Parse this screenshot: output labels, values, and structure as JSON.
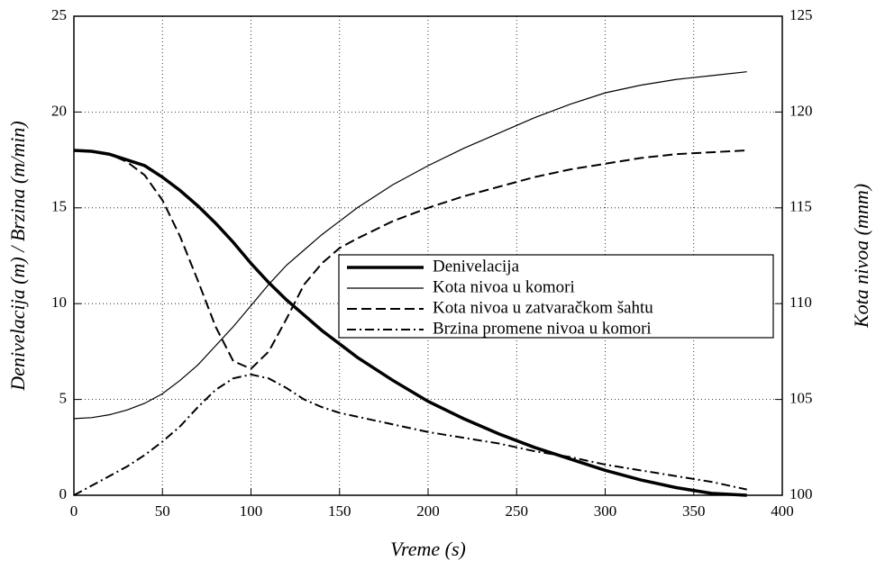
{
  "chart_data": {
    "type": "line",
    "xlabel": "Vreme (s)",
    "ylabel": "Denivelacija (m) / Brzina (m/min)",
    "y2label": "Kota nivoa (mnm)",
    "x": [
      0,
      10,
      20,
      30,
      40,
      50,
      60,
      70,
      80,
      90,
      100,
      110,
      120,
      130,
      140,
      150,
      160,
      180,
      200,
      220,
      240,
      260,
      280,
      300,
      320,
      340,
      360,
      380
    ],
    "series": [
      {
        "name": "Denivelacija",
        "color": "#000000",
        "style": "solid",
        "width": 3.5,
        "values": [
          18,
          17.95,
          17.8,
          17.5,
          17.2,
          16.6,
          15.9,
          15.1,
          14.2,
          13.2,
          12.1,
          11.1,
          10.2,
          9.4,
          8.6,
          7.9,
          7.2,
          6.0,
          4.9,
          4.0,
          3.2,
          2.5,
          1.9,
          1.3,
          0.8,
          0.4,
          0.1,
          0
        ]
      },
      {
        "name": "Kota nivoa u komori",
        "color": "#000000",
        "style": "solid",
        "width": 1.2,
        "axis": "y2",
        "values": [
          104,
          104.05,
          104.2,
          104.45,
          104.8,
          105.3,
          106,
          106.8,
          107.8,
          108.8,
          109.9,
          111,
          112,
          112.8,
          113.6,
          114.3,
          115,
          116.2,
          117.2,
          118.1,
          118.9,
          119.7,
          120.4,
          121,
          121.4,
          121.7,
          121.9,
          122.1
        ]
      },
      {
        "name": "Kota nivoa u zatvaračkom šahtu",
        "color": "#000000",
        "style": "dashed",
        "width": 2,
        "axis": "y2",
        "values": [
          118,
          117.95,
          117.8,
          117.4,
          116.7,
          115.4,
          113.5,
          111.2,
          108.8,
          107,
          106.6,
          107.5,
          109.2,
          111,
          112.1,
          112.9,
          113.4,
          114.3,
          115,
          115.6,
          116.1,
          116.6,
          117,
          117.3,
          117.6,
          117.8,
          117.9,
          118
        ]
      },
      {
        "name": "Brzina promene nivoa u komori",
        "color": "#000000",
        "style": "dashdot",
        "width": 2,
        "values": [
          0,
          0.5,
          1.0,
          1.5,
          2.1,
          2.8,
          3.6,
          4.6,
          5.5,
          6.1,
          6.3,
          6.1,
          5.6,
          5.0,
          4.6,
          4.3,
          4.1,
          3.7,
          3.3,
          3.0,
          2.7,
          2.3,
          2.0,
          1.6,
          1.3,
          1.0,
          0.7,
          0.3
        ]
      }
    ],
    "xlim": [
      0,
      400
    ],
    "xticks": [
      0,
      50,
      100,
      150,
      200,
      250,
      300,
      350,
      400
    ],
    "ylim": [
      0,
      25
    ],
    "yticks": [
      0,
      5,
      10,
      15,
      20,
      25
    ],
    "y2lim": [
      100,
      125
    ],
    "y2ticks": [
      100,
      105,
      110,
      115,
      120,
      125
    ],
    "grid": true,
    "legend": "right"
  }
}
